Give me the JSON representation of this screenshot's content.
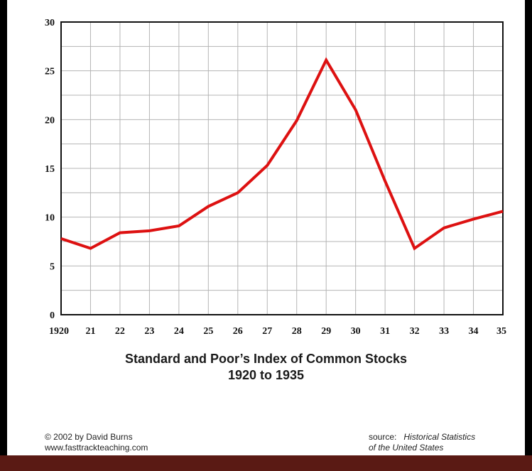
{
  "colors": {
    "line": "#dd1111",
    "grid": "#b5b5b5",
    "axis": "#111111",
    "background": "#ffffff"
  },
  "chart_data": {
    "type": "line",
    "title": "Standard and Poor’s Index of Common Stocks",
    "subtitle": "1920 to 1935",
    "xlabel": "",
    "ylabel": "",
    "x": [
      1920,
      1921,
      1922,
      1923,
      1924,
      1925,
      1926,
      1927,
      1928,
      1929,
      1930,
      1931,
      1932,
      1933,
      1934,
      1935
    ],
    "x_tick_labels": [
      "1920",
      "21",
      "22",
      "23",
      "24",
      "25",
      "26",
      "27",
      "28",
      "29",
      "30",
      "31",
      "32",
      "33",
      "34",
      "35"
    ],
    "y_ticks": [
      0,
      5,
      10,
      15,
      20,
      25,
      30
    ],
    "ylim": [
      0,
      30
    ],
    "grid": true,
    "legend": "none",
    "series": [
      {
        "values": [
          7.8,
          6.8,
          8.4,
          8.6,
          9.1,
          11.1,
          12.5,
          15.3,
          19.9,
          26.1,
          21.0,
          13.7,
          6.8,
          8.9,
          9.8,
          10.6
        ]
      }
    ]
  },
  "footer": {
    "credit_line1": "© 2002 by David Burns",
    "credit_line2": "www.fasttrackteaching.com",
    "source_label": "source:",
    "source_title_line1": "Historical Statistics",
    "source_title_line2": "of the United States"
  }
}
